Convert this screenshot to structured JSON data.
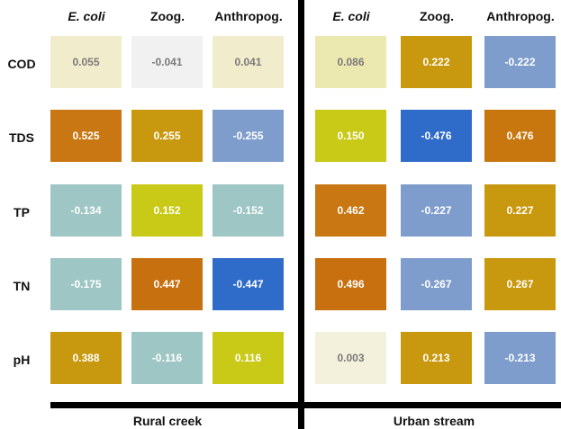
{
  "chart_data": {
    "type": "heatmap",
    "panels": [
      {
        "title": "Rural creek",
        "columns": [
          "E. coli",
          "Zoog.",
          "Anthropog."
        ],
        "rows": [
          "COD",
          "TDS",
          "TP",
          "TN",
          "pH"
        ],
        "values": [
          [
            "0.055",
            "-0.041",
            "0.041"
          ],
          [
            "0.525",
            "0.255",
            "-0.255"
          ],
          [
            "-0.134",
            "0.152",
            "-0.152"
          ],
          [
            "-0.175",
            "0.447",
            "-0.447"
          ],
          [
            "0.388",
            "-0.116",
            "0.116"
          ]
        ],
        "colors": [
          [
            "#f1eccb",
            "#f1f1f1",
            "#f1eccb"
          ],
          [
            "#c87712",
            "#c8990f",
            "#7f9dcc"
          ],
          [
            "#9ec6c4",
            "#c9c918",
            "#9ec6c4"
          ],
          [
            "#9ec6c4",
            "#c7700f",
            "#2f6bc9"
          ],
          [
            "#c8990f",
            "#9ec6c4",
            "#c9c918"
          ]
        ]
      },
      {
        "title": "Urban stream",
        "columns": [
          "E. coli",
          "Zoog.",
          "Anthropog."
        ],
        "rows": [
          "COD",
          "TDS",
          "TP",
          "TN",
          "pH"
        ],
        "values": [
          [
            "0.086",
            "0.222",
            "-0.222"
          ],
          [
            "0.150",
            "-0.476",
            "0.476"
          ],
          [
            "0.462",
            "-0.227",
            "0.227"
          ],
          [
            "0.496",
            "-0.267",
            "0.267"
          ],
          [
            "0.003",
            "0.213",
            "-0.213"
          ]
        ],
        "colors": [
          [
            "#ebe8b0",
            "#c8990f",
            "#7f9dcc"
          ],
          [
            "#c9c918",
            "#2f6bc9",
            "#c8770f"
          ],
          [
            "#c87712",
            "#7f9dcc",
            "#c8990f"
          ],
          [
            "#c8700f",
            "#7f9dcc",
            "#c8990f"
          ],
          [
            "#f3f0db",
            "#c8990f",
            "#7f9dcc"
          ]
        ]
      }
    ]
  }
}
